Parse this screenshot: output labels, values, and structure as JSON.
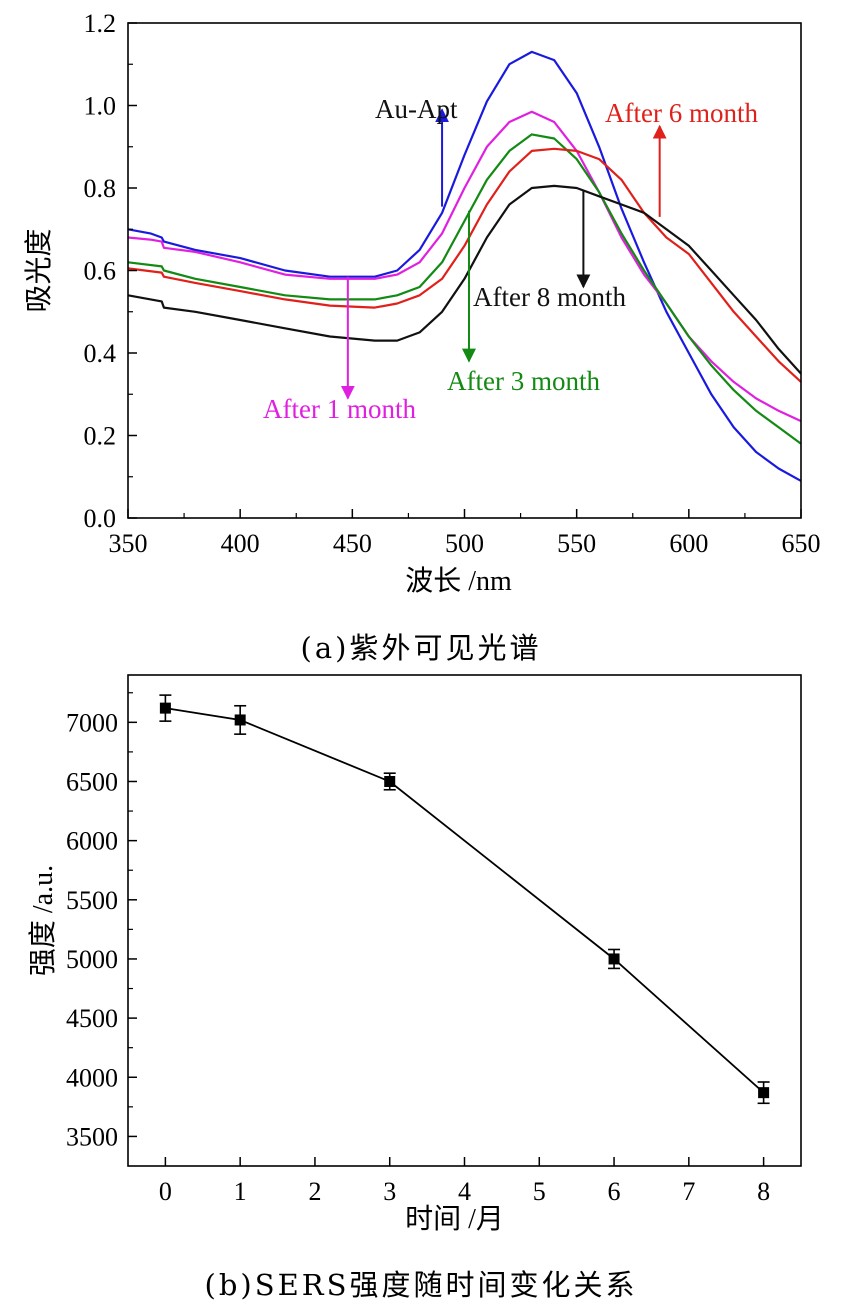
{
  "chart_data": [
    {
      "type": "line",
      "caption": "(a)紫外可见光谱",
      "xlabel": "波长 /nm",
      "ylabel": "吸光度",
      "xlim": [
        350,
        650
      ],
      "ylim": [
        0.0,
        1.2
      ],
      "xticks": [
        "350",
        "400",
        "450",
        "500",
        "550",
        "600",
        "650"
      ],
      "yticks": [
        "0.0",
        "0.2",
        "0.4",
        "0.6",
        "0.8",
        "1.0",
        "1.2"
      ],
      "series": [
        {
          "name": "Au-Apt",
          "color": "#1a1adf",
          "x": [
            350,
            360,
            365,
            366,
            380,
            400,
            420,
            440,
            460,
            470,
            480,
            490,
            500,
            510,
            520,
            530,
            540,
            550,
            560,
            570,
            580,
            590,
            600,
            610,
            620,
            630,
            640,
            650
          ],
          "y": [
            0.7,
            0.69,
            0.68,
            0.67,
            0.65,
            0.63,
            0.6,
            0.585,
            0.585,
            0.6,
            0.65,
            0.74,
            0.88,
            1.01,
            1.1,
            1.13,
            1.11,
            1.03,
            0.9,
            0.75,
            0.62,
            0.5,
            0.4,
            0.3,
            0.22,
            0.16,
            0.12,
            0.09
          ]
        },
        {
          "name": "After 1 month",
          "color": "#e020e0",
          "x": [
            350,
            360,
            365,
            366,
            380,
            400,
            420,
            440,
            460,
            470,
            480,
            490,
            500,
            510,
            520,
            530,
            540,
            550,
            560,
            570,
            580,
            590,
            600,
            610,
            620,
            630,
            640,
            650
          ],
          "y": [
            0.68,
            0.675,
            0.67,
            0.655,
            0.645,
            0.62,
            0.59,
            0.58,
            0.58,
            0.59,
            0.62,
            0.69,
            0.8,
            0.9,
            0.96,
            0.985,
            0.96,
            0.89,
            0.79,
            0.68,
            0.59,
            0.52,
            0.44,
            0.38,
            0.33,
            0.29,
            0.26,
            0.235
          ]
        },
        {
          "name": "After 3 month",
          "color": "#138a13",
          "x": [
            350,
            365,
            366,
            380,
            400,
            420,
            440,
            460,
            470,
            480,
            490,
            500,
            510,
            520,
            530,
            540,
            550,
            560,
            570,
            580,
            590,
            600,
            610,
            620,
            630,
            640,
            650
          ],
          "y": [
            0.62,
            0.61,
            0.6,
            0.58,
            0.56,
            0.54,
            0.53,
            0.53,
            0.54,
            0.56,
            0.62,
            0.72,
            0.82,
            0.89,
            0.93,
            0.92,
            0.87,
            0.79,
            0.69,
            0.6,
            0.52,
            0.44,
            0.37,
            0.31,
            0.26,
            0.22,
            0.18
          ]
        },
        {
          "name": "After 6 month",
          "color": "#e0201a",
          "x": [
            350,
            365,
            366,
            380,
            400,
            420,
            440,
            460,
            470,
            480,
            490,
            500,
            510,
            520,
            530,
            540,
            550,
            560,
            570,
            580,
            590,
            600,
            610,
            620,
            630,
            640,
            650
          ],
          "y": [
            0.605,
            0.595,
            0.585,
            0.57,
            0.55,
            0.53,
            0.515,
            0.51,
            0.52,
            0.54,
            0.58,
            0.66,
            0.76,
            0.84,
            0.89,
            0.895,
            0.89,
            0.87,
            0.82,
            0.74,
            0.68,
            0.64,
            0.57,
            0.5,
            0.44,
            0.38,
            0.33
          ]
        },
        {
          "name": "After 8 month",
          "color": "#111111",
          "x": [
            350,
            365,
            366,
            380,
            400,
            420,
            440,
            460,
            470,
            480,
            490,
            500,
            510,
            520,
            530,
            540,
            550,
            560,
            570,
            580,
            590,
            600,
            610,
            620,
            630,
            640,
            650
          ],
          "y": [
            0.54,
            0.525,
            0.51,
            0.5,
            0.48,
            0.46,
            0.44,
            0.43,
            0.43,
            0.45,
            0.5,
            0.58,
            0.68,
            0.76,
            0.8,
            0.805,
            0.8,
            0.78,
            0.76,
            0.74,
            0.7,
            0.66,
            0.6,
            0.54,
            0.48,
            0.41,
            0.35
          ]
        }
      ],
      "annotations": [
        {
          "text": "Au-Apt",
          "color": "#111111",
          "arrow_color": "#1a1adf",
          "arrow_x": 490,
          "arrow_from": 0.755,
          "arrow_to": 0.99
        },
        {
          "text": "After 6 month",
          "color": "#e0201a",
          "arrow_color": "#e0201a",
          "arrow_x": 587,
          "arrow_from": 0.73,
          "arrow_to": 0.95
        },
        {
          "text": "After 8 month",
          "color": "#111111",
          "arrow_color": "#111111",
          "arrow_x": 553,
          "arrow_from": 0.795,
          "arrow_to": 0.56
        },
        {
          "text": "After 3 month",
          "color": "#138a13",
          "arrow_color": "#138a13",
          "arrow_x": 502,
          "arrow_from": 0.745,
          "arrow_to": 0.38
        },
        {
          "text": "After 1 month",
          "color": "#e020e0",
          "arrow_color": "#e020e0",
          "arrow_x": 448,
          "arrow_from": 0.585,
          "arrow_to": 0.29
        }
      ]
    },
    {
      "type": "line",
      "caption": "(b)SERS强度随时间变化关系",
      "xlabel": "时间 /月",
      "ylabel": "强度 /a.u.",
      "xlim": [
        -0.5,
        8.5
      ],
      "ylim": [
        3250,
        7400
      ],
      "xticks": [
        "0",
        "1",
        "2",
        "3",
        "4",
        "5",
        "6",
        "7",
        "8"
      ],
      "yticks": [
        "3500",
        "4000",
        "4500",
        "5000",
        "5500",
        "6000",
        "6500",
        "7000"
      ],
      "x": [
        0,
        1,
        3,
        6,
        8
      ],
      "y": [
        7120,
        7020,
        6500,
        5000,
        3870
      ],
      "error": [
        110,
        120,
        70,
        80,
        90
      ],
      "marker": "square",
      "color": "#000000"
    }
  ]
}
